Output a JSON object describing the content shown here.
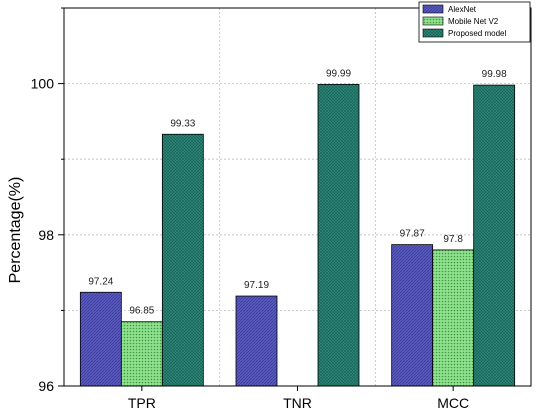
{
  "chart_data": {
    "type": "bar",
    "categories": [
      "TPR",
      "TNR",
      "MCC"
    ],
    "series": [
      {
        "name": "AlexNet",
        "values": [
          97.24,
          97.19,
          97.87
        ],
        "labels": [
          "97.24",
          "97.19",
          "97.87"
        ],
        "color": "#5b5bbf",
        "pattern": "hatch"
      },
      {
        "name": "Mobile Net V2",
        "values": [
          96.85,
          null,
          97.8
        ],
        "labels": [
          "96.85",
          "",
          "97.8"
        ],
        "color": "#7ed67e",
        "pattern": "dots"
      },
      {
        "name": "Proposed model",
        "values": [
          99.33,
          99.99,
          99.98
        ],
        "labels": [
          "99.33",
          "99.99",
          "99.98"
        ],
        "color": "#2f8a7c",
        "pattern": "crosshatch"
      }
    ],
    "ylabel": "Percentage(%)",
    "xlabel": "",
    "ylim": [
      96,
      101
    ],
    "yticks": [
      96,
      98,
      100
    ],
    "ytick_labels": [
      "96",
      "98",
      "100"
    ],
    "grid": true,
    "legend_position": "top-right"
  }
}
